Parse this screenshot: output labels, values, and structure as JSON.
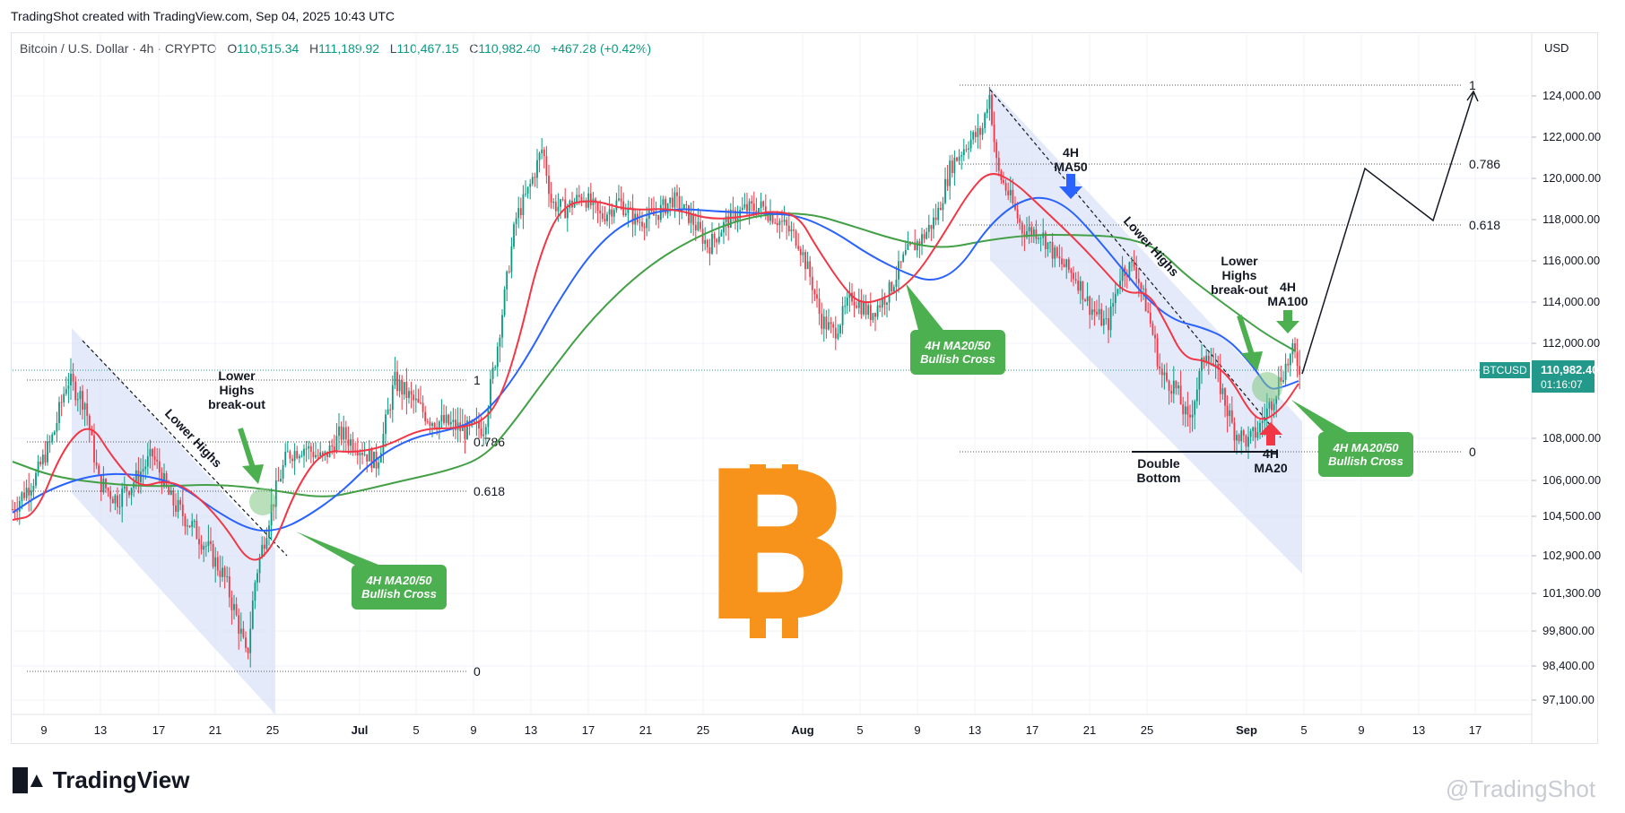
{
  "header": {
    "created_text": "TradingShot created with TradingView.com, Sep 04, 2025 10:43 UTC"
  },
  "legend": {
    "symbol": "Bitcoin / U.S. Dollar · 4h · CRYPTO",
    "o_label": "O",
    "o_value": "110,515.34",
    "h_label": "H",
    "h_value": "111,189.92",
    "l_label": "L",
    "l_value": "110,467.15",
    "c_label": "C",
    "c_value": "110,982.40",
    "change": "+467.28 (+0.42%)"
  },
  "price_scale": {
    "currency": "USD",
    "ticks": [
      "124,000.00",
      "122,000.00",
      "120,000.00",
      "118,000.00",
      "116,000.00",
      "114,000.00",
      "112,000.00",
      "108,000.00",
      "106,000.00",
      "104,500.00",
      "102,900.00",
      "101,300.00",
      "99,800.00",
      "98,400.00",
      "97,100.00"
    ],
    "current_symbol": "BTCUSD",
    "current_price": "110,982.40",
    "countdown": "01:16:07"
  },
  "time_axis": {
    "labels": [
      "9",
      "13",
      "17",
      "21",
      "25",
      "Jul",
      "5",
      "9",
      "13",
      "17",
      "21",
      "25",
      "Aug",
      "5",
      "9",
      "13",
      "17",
      "21",
      "25",
      "Sep",
      "5",
      "9",
      "13",
      "17"
    ]
  },
  "annotations": {
    "lower_highs_left": "Lower Highs",
    "lower_highs_right": "Lower Highs",
    "breakout_left": [
      "Lower",
      "Highs",
      "break-out"
    ],
    "breakout_right": [
      "Lower",
      "Highs",
      "break-out"
    ],
    "cross_left": [
      "4H MA20/50",
      "Bullish Cross"
    ],
    "cross_mid": [
      "4H MA20/50",
      "Bullish Cross"
    ],
    "cross_right": [
      "4H MA20/50",
      "Bullish Cross"
    ],
    "ma50_label": [
      "4H",
      "MA50"
    ],
    "ma100_label": [
      "4H",
      "MA100"
    ],
    "ma20_label": [
      "4H",
      "MA20"
    ],
    "double_bottom": [
      "Double",
      "Bottom"
    ],
    "fib_left": [
      "1",
      "0.786",
      "0.618",
      "0"
    ],
    "fib_right": [
      "1",
      "0.786",
      "0.618",
      "0"
    ]
  },
  "footer": {
    "brand": "TradingView",
    "watermark": "@TradingShot"
  },
  "colors": {
    "up": "#089981",
    "down": "#f23645",
    "ma20": "#f23645",
    "ma50": "#2962ff",
    "ma100": "#43a047",
    "channel": "#dbe3f7",
    "pill": "#4caf50",
    "bitcoin": "#f7931a",
    "current": "#22998a"
  },
  "chart_data": {
    "type": "candlestick",
    "timeframe": "4h",
    "price_range": [
      97100,
      124500
    ],
    "series": [
      {
        "name": "4H MA20",
        "approx_path_prices": [
          105000,
          108000,
          104800,
          104600,
          102200,
          108500,
          110000,
          108500,
          108300,
          117500,
          117800,
          118500,
          115000,
          114600,
          118000,
          120500,
          117000,
          114000,
          110500,
          109300,
          110900
        ]
      },
      {
        "name": "4H MA50",
        "approx_path_prices": [
          105000,
          106800,
          106000,
          104000,
          106000,
          108000,
          109000,
          113800,
          117200,
          118000,
          117800,
          116000,
          117500,
          118800,
          116000,
          112700,
          110400,
          110900
        ]
      },
      {
        "name": "4H MA100",
        "approx_path_prices": [
          106700,
          106000,
          105800,
          106600,
          106700,
          107400,
          109000,
          114000,
          117000,
          118400,
          117300,
          116300,
          117200,
          116800,
          115200,
          111800
        ]
      }
    ],
    "projection": {
      "points": [
        110982,
        120300,
        117800,
        124000
      ]
    },
    "fib_levels_left": {
      "1": 110700,
      "0.786": 108000,
      "0.618": 105600,
      "0": 98400
    },
    "fib_levels_right": {
      "1": 124500,
      "0.786": 120500,
      "0.618": 117600,
      "0": 107600
    }
  }
}
